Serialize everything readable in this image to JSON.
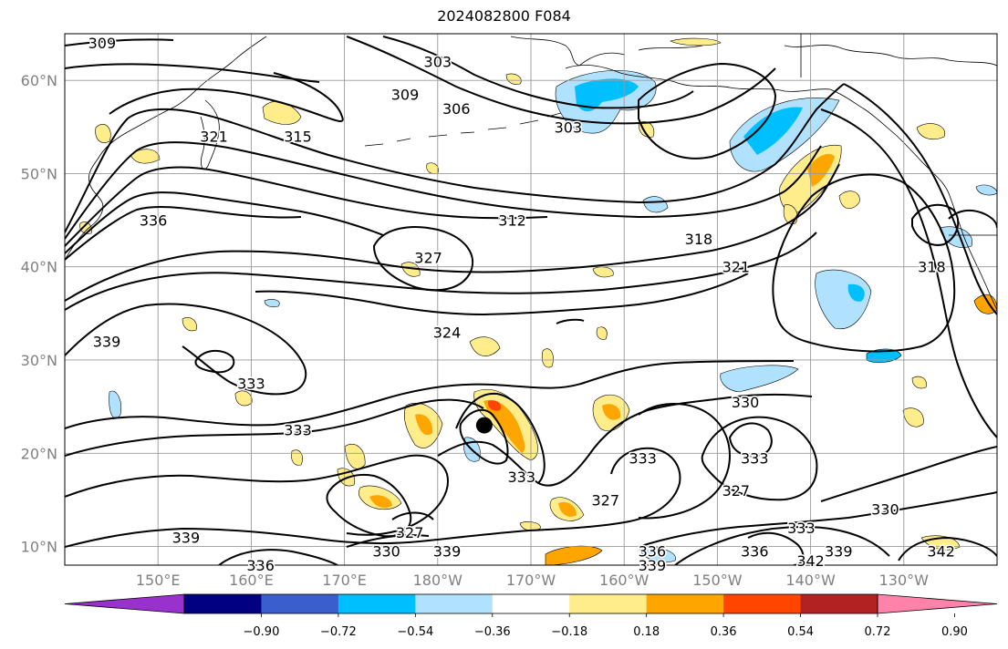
{
  "title": "2024082800 F084",
  "map": {
    "lat_labels": [
      {
        "label": "60°N",
        "lat": 60
      },
      {
        "label": "50°N",
        "lat": 50
      },
      {
        "label": "40°N",
        "lat": 40
      },
      {
        "label": "30°N",
        "lat": 30
      },
      {
        "label": "20°N",
        "lat": 20
      },
      {
        "label": "10°N",
        "lat": 10
      }
    ],
    "lon_labels": [
      {
        "label": "150°E",
        "lon": 150
      },
      {
        "label": "160°E",
        "lon": 160
      },
      {
        "label": "170°E",
        "lon": 170
      },
      {
        "label": "180°W",
        "lon": 180
      },
      {
        "label": "170°W",
        "lon": 190
      },
      {
        "label": "160°W",
        "lon": 200
      },
      {
        "label": "150°W",
        "lon": 210
      },
      {
        "label": "140°W",
        "lon": 220
      },
      {
        "label": "130°W",
        "lon": 230
      }
    ],
    "extent": {
      "lon_min": 140,
      "lon_max": 240,
      "lat_min": 8,
      "lat_max": 65
    },
    "marker": {
      "lon": 185,
      "lat": 23,
      "color": "#000000"
    },
    "contour_labels": [
      {
        "text": "309",
        "lon": 144,
        "lat": 64
      },
      {
        "text": "303",
        "lon": 180,
        "lat": 62
      },
      {
        "text": "309",
        "lon": 176.5,
        "lat": 58.5
      },
      {
        "text": "306",
        "lon": 182,
        "lat": 57
      },
      {
        "text": "303",
        "lon": 194,
        "lat": 55
      },
      {
        "text": "315",
        "lon": 165,
        "lat": 54
      },
      {
        "text": "321",
        "lon": 156,
        "lat": 54
      },
      {
        "text": "336",
        "lon": 149.5,
        "lat": 45
      },
      {
        "text": "312",
        "lon": 188,
        "lat": 45
      },
      {
        "text": "318",
        "lon": 208,
        "lat": 43
      },
      {
        "text": "327",
        "lon": 179,
        "lat": 41
      },
      {
        "text": "321",
        "lon": 212,
        "lat": 40
      },
      {
        "text": "318",
        "lon": 233,
        "lat": 40
      },
      {
        "text": "324",
        "lon": 181,
        "lat": 33
      },
      {
        "text": "339",
        "lon": 144.5,
        "lat": 32
      },
      {
        "text": "333",
        "lon": 160,
        "lat": 27.5
      },
      {
        "text": "330",
        "lon": 213,
        "lat": 25.5
      },
      {
        "text": "333",
        "lon": 165,
        "lat": 22.5
      },
      {
        "text": "333",
        "lon": 202,
        "lat": 19.5
      },
      {
        "text": "333",
        "lon": 214,
        "lat": 19.5
      },
      {
        "text": "333",
        "lon": 189,
        "lat": 17.5
      },
      {
        "text": "327",
        "lon": 198,
        "lat": 15
      },
      {
        "text": "327",
        "lon": 212,
        "lat": 16
      },
      {
        "text": "330",
        "lon": 228,
        "lat": 14
      },
      {
        "text": "339",
        "lon": 153,
        "lat": 11
      },
      {
        "text": "327",
        "lon": 177,
        "lat": 11.5
      },
      {
        "text": "330",
        "lon": 174.5,
        "lat": 9.5
      },
      {
        "text": "339",
        "lon": 181,
        "lat": 9.5
      },
      {
        "text": "333",
        "lon": 219,
        "lat": 12
      },
      {
        "text": "339",
        "lon": 223,
        "lat": 9.5
      },
      {
        "text": "336",
        "lon": 203,
        "lat": 9.5
      },
      {
        "text": "336",
        "lon": 214,
        "lat": 9.5
      },
      {
        "text": "342",
        "lon": 220,
        "lat": 8.5
      },
      {
        "text": "342",
        "lon": 234,
        "lat": 9.5
      },
      {
        "text": "339",
        "lon": 203,
        "lat": 8
      },
      {
        "text": "336",
        "lon": 161,
        "lat": 8
      }
    ]
  },
  "colorbar": {
    "colors": [
      "#9932cc",
      "#000080",
      "#3a5fcd",
      "#00bfff",
      "#b0e2ff",
      "#ffffff",
      "#ffec8b",
      "#ffa500",
      "#ff4500",
      "#b22222",
      "#ff82ab"
    ],
    "tick_labels": [
      "−0.90",
      "−0.72",
      "−0.54",
      "−0.36",
      "−0.18",
      "0.18",
      "0.36",
      "0.54",
      "0.72",
      "0.90"
    ]
  }
}
